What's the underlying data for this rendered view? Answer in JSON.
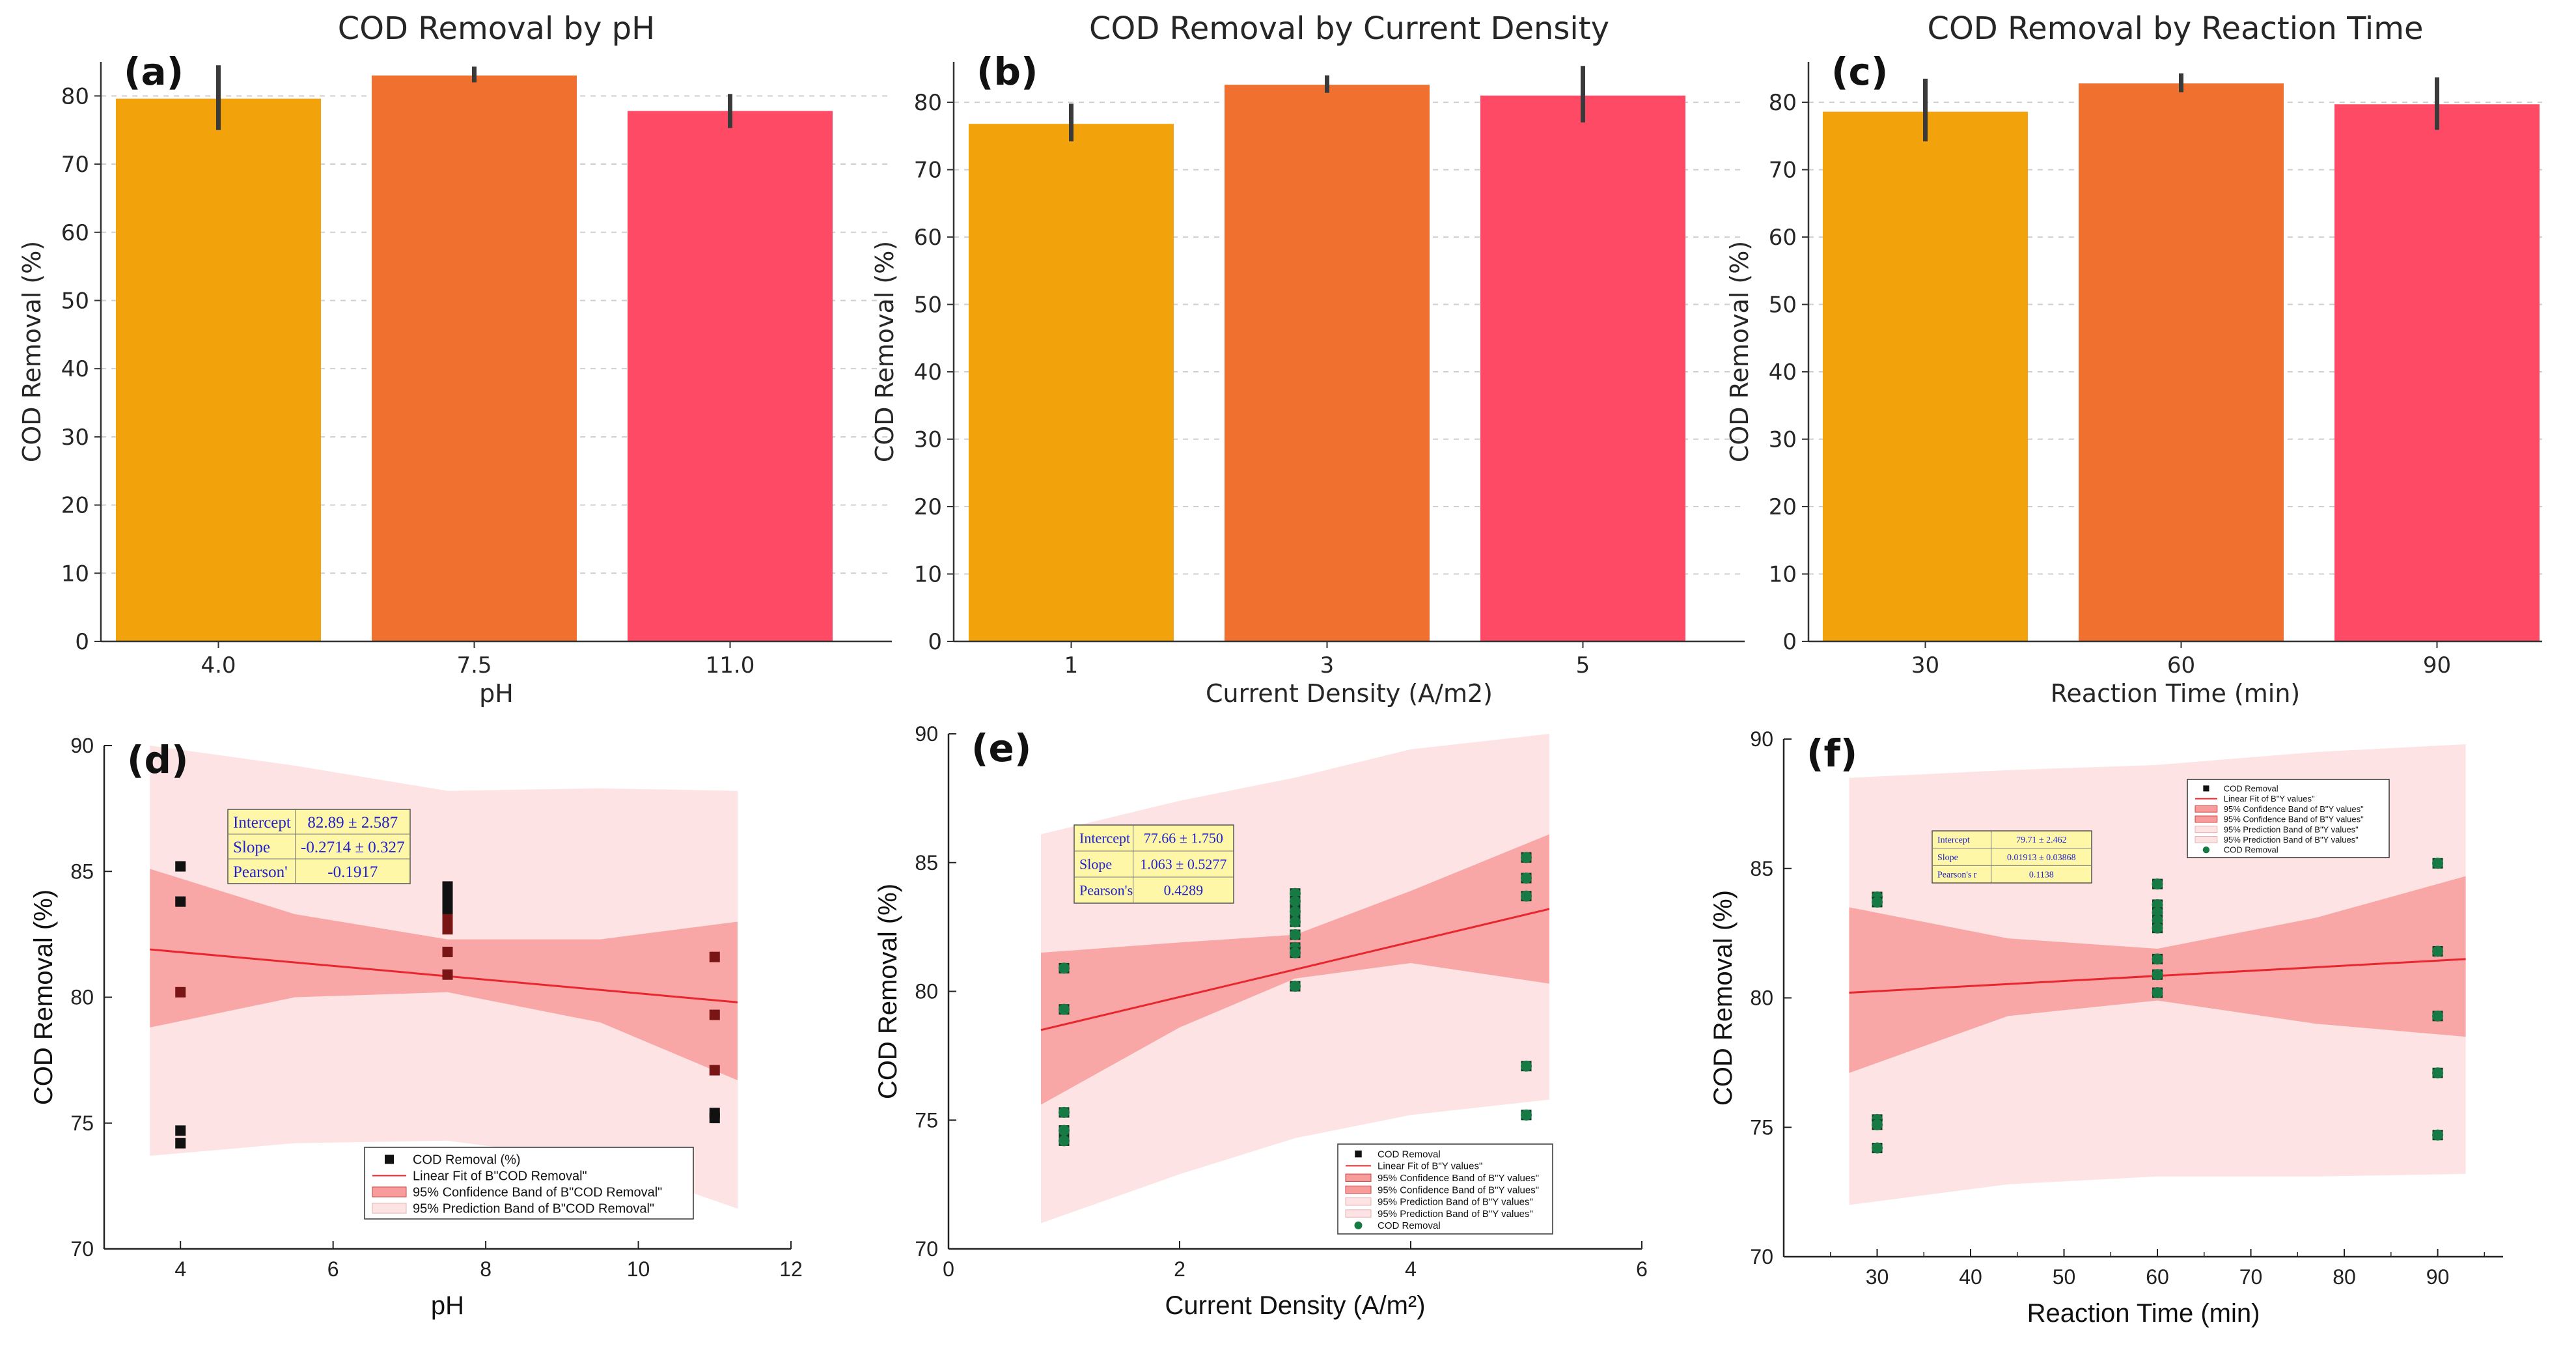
{
  "colors": {
    "bar_1": "#F2A20A",
    "bar_2": "#F07030",
    "bar_3": "#FF4A66",
    "fit_line": "#E8262E",
    "confidence_band": "#F79B9B",
    "prediction_band": "#FDE3E3",
    "marker_black": "#111111",
    "marker_dark_red": "#7A1515",
    "marker_green": "#177A45",
    "stats_box": "#FFF7A8"
  },
  "chart_data": [
    {
      "panel": "(a)",
      "type": "bar",
      "title": "COD Removal by pH",
      "xlabel": "pH",
      "ylabel": "COD Removal (%)",
      "categories": [
        "4.0",
        "7.5",
        "11.0"
      ],
      "values": [
        79.6,
        83.0,
        77.8
      ],
      "error_low": [
        75.0,
        82.0,
        75.3
      ],
      "error_high": [
        84.5,
        84.3,
        80.3
      ],
      "ylim": [
        0,
        85
      ],
      "yticks": [
        "0",
        "10",
        "20",
        "30",
        "40",
        "50",
        "60",
        "70",
        "80"
      ],
      "grid": true
    },
    {
      "panel": "(b)",
      "type": "bar",
      "title": "COD Removal by Current Density",
      "xlabel": "Current Density (A/m2)",
      "ylabel": "COD Removal (%)",
      "categories": [
        "1",
        "3",
        "5"
      ],
      "values": [
        76.8,
        82.6,
        81.0
      ],
      "error_low": [
        74.2,
        81.4,
        77.0
      ],
      "error_high": [
        79.8,
        84.0,
        85.4
      ],
      "ylim": [
        0,
        86
      ],
      "yticks": [
        "0",
        "10",
        "20",
        "30",
        "40",
        "50",
        "60",
        "70",
        "80"
      ],
      "grid": true
    },
    {
      "panel": "(c)",
      "type": "bar",
      "title": "COD Removal by Reaction Time",
      "xlabel": "Reaction Time (min)",
      "ylabel": "COD Removal (%)",
      "categories": [
        "30",
        "60",
        "90"
      ],
      "values": [
        78.6,
        82.8,
        79.7
      ],
      "error_low": [
        74.2,
        81.5,
        75.9
      ],
      "error_high": [
        83.5,
        84.3,
        83.7
      ],
      "ylim": [
        0,
        86
      ],
      "yticks": [
        "0",
        "10",
        "20",
        "30",
        "40",
        "50",
        "60",
        "70",
        "80"
      ],
      "grid": true
    },
    {
      "panel": "(d)",
      "type": "scatter",
      "xlabel": "pH",
      "ylabel": "COD Removal (%)",
      "xlim": [
        3,
        12
      ],
      "ylim": [
        70,
        90
      ],
      "xticks": [
        "4",
        "6",
        "8",
        "10",
        "12"
      ],
      "yticks": [
        "70",
        "75",
        "80",
        "85",
        "90"
      ],
      "points": [
        {
          "x": 4,
          "y": 85.2
        },
        {
          "x": 4,
          "y": 83.8
        },
        {
          "x": 4,
          "y": 80.2
        },
        {
          "x": 4,
          "y": 74.7
        },
        {
          "x": 4,
          "y": 74.2
        },
        {
          "x": 7.5,
          "y": 84.4
        },
        {
          "x": 7.5,
          "y": 84.0
        },
        {
          "x": 7.5,
          "y": 83.7
        },
        {
          "x": 7.5,
          "y": 83.4
        },
        {
          "x": 7.5,
          "y": 83.1
        },
        {
          "x": 7.5,
          "y": 82.7
        },
        {
          "x": 7.5,
          "y": 81.8
        },
        {
          "x": 7.5,
          "y": 80.9
        },
        {
          "x": 11,
          "y": 81.6
        },
        {
          "x": 11,
          "y": 79.3
        },
        {
          "x": 11,
          "y": 77.1
        },
        {
          "x": 11,
          "y": 75.4
        },
        {
          "x": 11,
          "y": 75.2
        }
      ],
      "fit": {
        "x0": 3.6,
        "y0": 81.9,
        "x1": 11.3,
        "y1": 79.8
      },
      "confidence_band": {
        "x": [
          3.6,
          5.5,
          7.5,
          9.5,
          11.3
        ],
        "lower": [
          78.8,
          80.0,
          80.2,
          79.0,
          76.7
        ],
        "upper": [
          85.1,
          83.3,
          82.3,
          82.3,
          83.0
        ]
      },
      "prediction_band": {
        "x": [
          3.6,
          5.5,
          7.5,
          9.5,
          11.3
        ],
        "lower": [
          73.7,
          74.2,
          74.3,
          73.5,
          71.6
        ],
        "upper": [
          90.0,
          89.2,
          88.2,
          88.3,
          88.2
        ]
      },
      "stats": {
        "intercept_label": "Intercept",
        "intercept_value": "82.89 ± 2.587",
        "slope_label": "Slope",
        "slope_value": "-0.2714 ± 0.327",
        "pearson_label": "Pearson'",
        "pearson_value": "-0.1917"
      },
      "legend": [
        {
          "kind": "marker",
          "label": "COD Removal (%)"
        },
        {
          "kind": "line",
          "label": "Linear Fit of B\"COD Removal\""
        },
        {
          "kind": "confidence",
          "label": "95% Confidence Band of B\"COD Removal\""
        },
        {
          "kind": "prediction",
          "label": "95% Prediction Band of B\"COD Removal\""
        }
      ]
    },
    {
      "panel": "(e)",
      "type": "scatter",
      "xlabel": "Current Density (A/m²)",
      "ylabel": "COD Removal (%)",
      "xlim": [
        0,
        6
      ],
      "ylim": [
        70,
        90
      ],
      "xticks": [
        "0",
        "2",
        "4",
        "6"
      ],
      "yticks": [
        "70",
        "75",
        "80",
        "85",
        "90"
      ],
      "points": [
        {
          "x": 1,
          "y": 80.9
        },
        {
          "x": 1,
          "y": 79.3
        },
        {
          "x": 1,
          "y": 75.3
        },
        {
          "x": 1,
          "y": 74.6
        },
        {
          "x": 1,
          "y": 74.2
        },
        {
          "x": 3,
          "y": 83.8
        },
        {
          "x": 3,
          "y": 83.5
        },
        {
          "x": 3,
          "y": 83.1
        },
        {
          "x": 3,
          "y": 82.7
        },
        {
          "x": 3,
          "y": 82.2
        },
        {
          "x": 3,
          "y": 81.7
        },
        {
          "x": 3,
          "y": 81.5
        },
        {
          "x": 3,
          "y": 80.2
        },
        {
          "x": 5,
          "y": 85.2
        },
        {
          "x": 5,
          "y": 84.4
        },
        {
          "x": 5,
          "y": 83.7
        },
        {
          "x": 5,
          "y": 77.1
        },
        {
          "x": 5,
          "y": 75.2
        }
      ],
      "fit": {
        "x0": 0.8,
        "y0": 78.5,
        "x1": 5.2,
        "y1": 83.2
      },
      "confidence_band": {
        "x": [
          0.8,
          2.0,
          3.0,
          4.0,
          5.2
        ],
        "lower": [
          75.6,
          78.6,
          80.5,
          81.1,
          80.3
        ],
        "upper": [
          81.5,
          81.9,
          82.2,
          83.9,
          86.1
        ]
      },
      "prediction_band": {
        "x": [
          0.8,
          2.0,
          3.0,
          4.0,
          5.2
        ],
        "lower": [
          71.0,
          72.9,
          74.3,
          75.2,
          75.8
        ],
        "upper": [
          86.1,
          87.4,
          88.3,
          89.4,
          90.0
        ]
      },
      "stats": {
        "intercept_label": "Intercept",
        "intercept_value": "77.66 ± 1.750",
        "slope_label": "Slope",
        "slope_value": "1.063 ± 0.5277",
        "pearson_label": "Pearson's",
        "pearson_value": "0.4289"
      },
      "legend": [
        {
          "kind": "marker",
          "label": "COD Removal"
        },
        {
          "kind": "line",
          "label": "Linear Fit of B\"Y values\""
        },
        {
          "kind": "confidence",
          "label": "95% Confidence Band of B\"Y values\""
        },
        {
          "kind": "confidence",
          "label": "95% Confidence Band of B\"Y values\""
        },
        {
          "kind": "prediction",
          "label": "95% Prediction Band of B\"Y values\""
        },
        {
          "kind": "prediction",
          "label": "95% Prediction Band of B\"Y values\""
        },
        {
          "kind": "circle",
          "label": "COD Removal"
        }
      ]
    },
    {
      "panel": "(f)",
      "type": "scatter",
      "xlabel": "Reaction Time (min)",
      "ylabel": "COD Removal (%)",
      "xlim": [
        20,
        97
      ],
      "ylim": [
        70,
        90
      ],
      "xticks": [
        "30",
        "40",
        "50",
        "60",
        "70",
        "80",
        "90"
      ],
      "yticks": [
        "70",
        "75",
        "80",
        "85",
        "90"
      ],
      "points": [
        {
          "x": 30,
          "y": 83.9
        },
        {
          "x": 30,
          "y": 83.7
        },
        {
          "x": 30,
          "y": 75.3
        },
        {
          "x": 30,
          "y": 75.1
        },
        {
          "x": 30,
          "y": 74.2
        },
        {
          "x": 60,
          "y": 84.4
        },
        {
          "x": 60,
          "y": 83.6
        },
        {
          "x": 60,
          "y": 83.3
        },
        {
          "x": 60,
          "y": 83.0
        },
        {
          "x": 60,
          "y": 82.7
        },
        {
          "x": 60,
          "y": 81.5
        },
        {
          "x": 60,
          "y": 80.9
        },
        {
          "x": 60,
          "y": 80.2
        },
        {
          "x": 90,
          "y": 85.2
        },
        {
          "x": 90,
          "y": 81.8
        },
        {
          "x": 90,
          "y": 79.3
        },
        {
          "x": 90,
          "y": 77.1
        },
        {
          "x": 90,
          "y": 74.7
        }
      ],
      "fit": {
        "x0": 27,
        "y0": 80.2,
        "x1": 93,
        "y1": 81.5
      },
      "confidence_band": {
        "x": [
          27,
          44,
          60,
          77,
          93
        ],
        "lower": [
          77.1,
          79.3,
          79.9,
          79.0,
          78.5
        ],
        "upper": [
          83.5,
          82.3,
          81.9,
          83.1,
          84.7
        ]
      },
      "prediction_band": {
        "x": [
          27,
          44,
          60,
          77,
          93
        ],
        "lower": [
          72.0,
          72.8,
          73.1,
          73.1,
          73.2
        ],
        "upper": [
          88.5,
          88.8,
          89.0,
          89.5,
          89.8
        ]
      },
      "stats": {
        "intercept_label": "Intercept",
        "intercept_value": "79.71 ± 2.462",
        "slope_label": "Slope",
        "slope_value": "0.01913 ± 0.03868",
        "pearson_label": "Pearson's r",
        "pearson_value": "0.1138"
      },
      "legend": [
        {
          "kind": "marker",
          "label": "COD Removal"
        },
        {
          "kind": "line",
          "label": "Linear Fit of B\"Y values\""
        },
        {
          "kind": "confidence",
          "label": "95% Confidence Band of B\"Y values\""
        },
        {
          "kind": "confidence",
          "label": "95% Confidence Band of B\"Y values\""
        },
        {
          "kind": "prediction",
          "label": "95% Prediction Band of B\"Y values\""
        },
        {
          "kind": "prediction",
          "label": "95% Prediction Band of B\"Y values\""
        },
        {
          "kind": "circle",
          "label": "COD Removal"
        }
      ]
    }
  ]
}
